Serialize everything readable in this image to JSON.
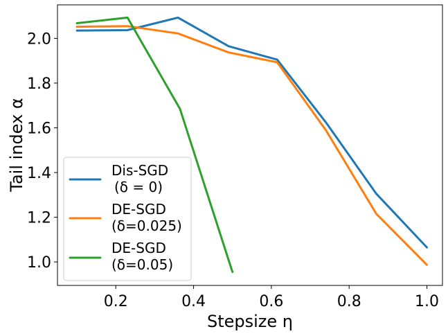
{
  "chart_data": {
    "type": "line",
    "xlabel": "Stepsize η",
    "ylabel": "Tail index α",
    "xlim": [
      0.05,
      1.04
    ],
    "ylim": [
      0.895,
      2.15
    ],
    "xticks": [
      0.2,
      0.4,
      0.6,
      0.8,
      1.0
    ],
    "xtick_labels": [
      "0.2",
      "0.4",
      "0.6",
      "0.8",
      "1.0"
    ],
    "yticks": [
      1.0,
      1.2,
      1.4,
      1.6,
      1.8,
      2.0
    ],
    "ytick_labels": [
      "1.0",
      "1.2",
      "1.4",
      "1.6",
      "1.8",
      "2.0"
    ],
    "grid": false,
    "legend_position": "lower-left",
    "series": [
      {
        "name_lines": [
          "Dis-SGD",
          "(δ = 0)"
        ],
        "color": "#1f77b4",
        "x": [
          0.1,
          0.23,
          0.36,
          0.49,
          0.615,
          0.74,
          0.87,
          1.0
        ],
        "y": [
          2.035,
          2.037,
          2.093,
          1.965,
          1.905,
          1.625,
          1.305,
          1.065
        ]
      },
      {
        "name_lines": [
          "DE-SGD",
          "(δ=0.025)"
        ],
        "color": "#ff7f0e",
        "x": [
          0.1,
          0.23,
          0.36,
          0.49,
          0.615,
          0.74,
          0.87,
          1.0
        ],
        "y": [
          2.052,
          2.055,
          2.022,
          1.937,
          1.893,
          1.59,
          1.215,
          0.987
        ]
      },
      {
        "name_lines": [
          "DE-SGD",
          "(δ=0.05)"
        ],
        "color": "#2ca02c",
        "x": [
          0.1,
          0.23,
          0.365,
          0.5
        ],
        "y": [
          2.068,
          2.093,
          1.685,
          0.955
        ]
      }
    ]
  }
}
